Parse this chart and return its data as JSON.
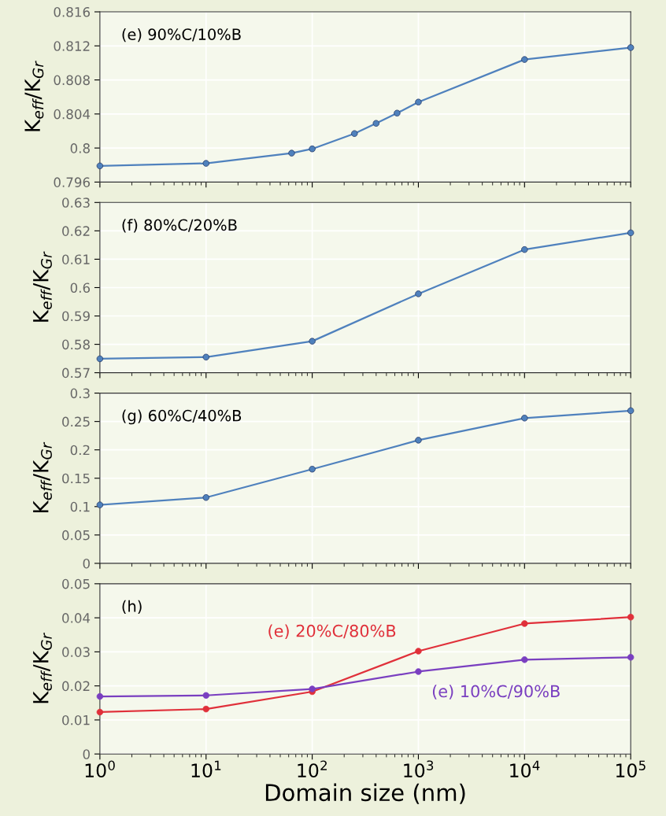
{
  "chart_data": [
    {
      "type": "line",
      "ylabel": "K$_{eff}$/K$_{Gr}$",
      "annotations": [
        "(e) 90%C/10%B"
      ],
      "log": "x",
      "grid": true,
      "marker": "circle",
      "tick_labels": "y",
      "xlim": [
        1,
        100000
      ],
      "xticks": [
        {
          "value": 1,
          "label": null
        },
        {
          "value": 10,
          "label": null
        },
        {
          "value": 100,
          "label": null
        },
        {
          "value": 1000,
          "label": null
        },
        {
          "value": 10000,
          "label": null
        },
        {
          "value": 100000,
          "label": null
        }
      ],
      "ylim": [
        0.796,
        0.816
      ],
      "yticks": [
        0.796,
        0.8,
        0.804,
        0.808,
        0.812,
        0.816
      ],
      "series": [
        {
          "color": "#4f81bd",
          "x": [
            1,
            10,
            64,
            100,
            250,
            400,
            630,
            1000,
            10000,
            100000
          ],
          "values": [
            0.7979,
            0.7982,
            0.7994,
            0.7999,
            0.8017,
            0.8029,
            0.8041,
            0.8054,
            0.8104,
            0.8118
          ]
        }
      ]
    },
    {
      "type": "line",
      "ylabel": "K$_{eff}$/K$_{Gr}$",
      "annotations": [
        "(f) 80%C/20%B"
      ],
      "log": "x",
      "grid": true,
      "marker": "circle",
      "tick_labels": "y",
      "xlim": [
        1,
        100000
      ],
      "xticks": [
        {
          "value": 1,
          "label": null
        },
        {
          "value": 10,
          "label": null
        },
        {
          "value": 100,
          "label": null
        },
        {
          "value": 1000,
          "label": null
        },
        {
          "value": 10000,
          "label": null
        },
        {
          "value": 100000,
          "label": null
        }
      ],
      "ylim": [
        0.57,
        0.63
      ],
      "yticks": [
        0.57,
        0.58,
        0.59,
        0.6,
        0.61,
        0.62,
        0.63
      ],
      "series": [
        {
          "color": "#4f81bd",
          "x": [
            1,
            10,
            100,
            1000,
            10000,
            100000
          ],
          "values": [
            0.5749,
            0.5755,
            0.5811,
            0.5978,
            0.6134,
            0.6193
          ]
        }
      ]
    },
    {
      "type": "line",
      "ylabel": "K$_{eff}$/K$_{Gr}$",
      "annotations": [
        "(g) 60%C/40%B"
      ],
      "log": "x",
      "grid": true,
      "marker": "circle",
      "tick_labels": "y",
      "xlim": [
        1,
        100000
      ],
      "xticks": [
        {
          "value": 1,
          "label": null
        },
        {
          "value": 10,
          "label": null
        },
        {
          "value": 100,
          "label": null
        },
        {
          "value": 1000,
          "label": null
        },
        {
          "value": 10000,
          "label": null
        },
        {
          "value": 100000,
          "label": null
        }
      ],
      "ylim": [
        0,
        0.3
      ],
      "yticks": [
        0,
        0.05,
        0.1,
        0.15,
        0.2,
        0.25,
        0.3
      ],
      "series": [
        {
          "color": "#4f81bd",
          "x": [
            1,
            10,
            100,
            1000,
            10000,
            100000
          ],
          "values": [
            0.103,
            0.116,
            0.166,
            0.217,
            0.256,
            0.269
          ]
        }
      ]
    },
    {
      "type": "line",
      "ylabel": "K$_{eff}$/K$_{Gr}$",
      "xlabel": "Domain size (nm)",
      "annotations": [
        "(h)"
      ],
      "log": "x",
      "grid": true,
      "marker": "circle",
      "xlim": [
        1,
        100000
      ],
      "xticks": [
        {
          "value": 1,
          "label": "10$^{0}$"
        },
        {
          "value": 10,
          "label": "10$^{1}$"
        },
        {
          "value": 100,
          "label": "10$^{2}$"
        },
        {
          "value": 1000,
          "label": "10$^{3}$"
        },
        {
          "value": 10000,
          "label": "10$^{4}$"
        },
        {
          "value": 100000,
          "label": "10$^{5}$"
        }
      ],
      "ylim": [
        0,
        0.05
      ],
      "yticks": [
        0,
        0.01,
        0.02,
        0.03,
        0.04,
        0.05
      ],
      "series": [
        {
          "name": "(e) 20%C/80%B",
          "color": "#e0303a",
          "x": [
            1,
            10,
            100,
            1000,
            10000,
            100000
          ],
          "values": [
            0.0123,
            0.0132,
            0.0183,
            0.0302,
            0.0383,
            0.0402
          ]
        },
        {
          "name": "(e) 10%C/90%B",
          "color": "#7a3fc0",
          "x": [
            1,
            10,
            100,
            1000,
            10000,
            100000
          ],
          "values": [
            0.0169,
            0.0172,
            0.0191,
            0.0242,
            0.0277,
            0.0284
          ]
        }
      ]
    }
  ]
}
